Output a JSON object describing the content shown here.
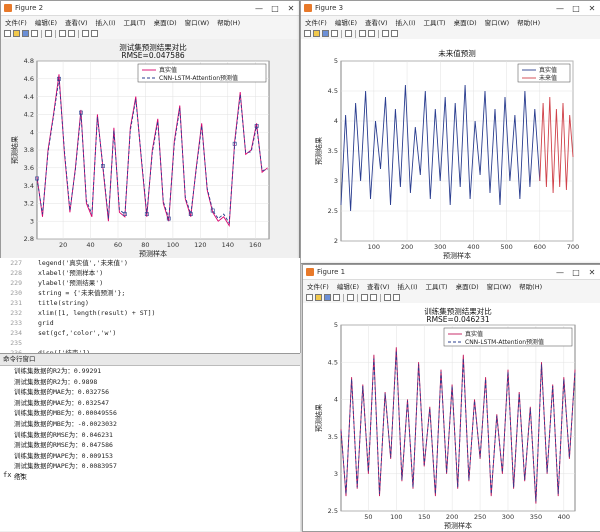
{
  "windows": {
    "fig2": {
      "title": "Figure 2",
      "menu": [
        "文件(F)",
        "编辑(E)",
        "查看(V)",
        "插入(I)",
        "工具(T)",
        "桌面(D)",
        "窗口(W)",
        "帮助(H)"
      ]
    },
    "fig3": {
      "title": "Figure 3",
      "menu": [
        "文件(F)",
        "编辑(E)",
        "查看(V)",
        "插入(I)",
        "工具(T)",
        "桌面(D)",
        "窗口(W)",
        "帮助(H)"
      ]
    },
    "fig1": {
      "title": "Figure 1",
      "menu": [
        "文件(F)",
        "编辑(E)",
        "查看(V)",
        "插入(I)",
        "工具(T)",
        "桌面(D)",
        "窗口(W)",
        "帮助(H)"
      ]
    },
    "window_buttons": {
      "min": "—",
      "max": "□",
      "close": "✕"
    }
  },
  "editor": {
    "lines": [
      {
        "num": "227",
        "code": "legend('真实值','未来值')"
      },
      {
        "num": "228",
        "code": "xlabel('预测样本')"
      },
      {
        "num": "229",
        "code": "ylabel('预测结果')"
      },
      {
        "num": "230",
        "code": "string = {'未来值预测'};"
      },
      {
        "num": "231",
        "code": "title(string)"
      },
      {
        "num": "232",
        "code": "xlim([1, length(result) + ST])"
      },
      {
        "num": "233",
        "code": "grid"
      },
      {
        "num": "234",
        "code": "set(gcf,'color','w')"
      },
      {
        "num": "235",
        "code": ""
      },
      {
        "num": "236",
        "code": "disp(['结束'])"
      }
    ]
  },
  "command_window": {
    "title": "命令行窗口",
    "lines": [
      "训练集数据的R2为：0.99291",
      "测试集数据的R2为：0.9898",
      "训练集数据的MAE为：0.032756",
      "测试集数据的MAE为：0.032547",
      "训练集数据的MBE为：0.00049556",
      "测试集数据的MBE为：-0.0023032",
      "训练集数据的RMSE为：0.046231",
      "测试集数据的RMSE为：0.047586",
      "训练集数据的MAPE为：0.009153",
      "测试集数据的MAPE为：0.0083957",
      "结束"
    ],
    "prompt": "fx >>"
  },
  "chart_data": [
    {
      "id": "fig2",
      "type": "line",
      "title": "测试集预测结果对比",
      "subtitle": "RMSE=0.047586",
      "xlabel": "预测样本",
      "ylabel": "预测结果",
      "xlim": [
        1,
        170
      ],
      "ylim": [
        2.8,
        4.8
      ],
      "xticks": [
        20,
        40,
        60,
        80,
        100,
        120,
        140,
        160
      ],
      "yticks": [
        2.8,
        3,
        3.2,
        3.4,
        3.6,
        3.8,
        4,
        4.2,
        4.4,
        4.6,
        4.8
      ],
      "legend": [
        "真实值",
        "CNN-LSTM-Attention预测值"
      ],
      "legend_position": "top-right",
      "colors": {
        "true": "#d9006b",
        "pred": "#2a3d8f"
      },
      "series": [
        {
          "name": "真实值",
          "x": [
            1,
            5,
            9,
            13,
            17,
            21,
            25,
            29,
            33,
            37,
            41,
            45,
            49,
            53,
            57,
            61,
            65,
            69,
            73,
            77,
            81,
            85,
            89,
            93,
            97,
            101,
            105,
            109,
            113,
            117,
            121,
            125,
            129,
            133,
            137,
            141,
            145,
            149,
            153,
            157,
            161,
            165,
            169
          ],
          "values": [
            3.5,
            3.05,
            3.8,
            4.2,
            4.65,
            3.75,
            3.1,
            3.6,
            4.25,
            3.2,
            3.05,
            4.2,
            3.6,
            3.0,
            4.05,
            3.1,
            3.05,
            4.05,
            4.4,
            3.7,
            3.05,
            3.8,
            4.15,
            3.2,
            3.0,
            3.9,
            4.3,
            3.25,
            3.05,
            3.6,
            4.1,
            3.35,
            3.1,
            3.0,
            3.05,
            2.95,
            3.9,
            4.45,
            3.75,
            3.8,
            4.1,
            3.55,
            3.6
          ]
        },
        {
          "name": "CNN-LSTM-Attention预测值",
          "x": [
            1,
            5,
            9,
            13,
            17,
            21,
            25,
            29,
            33,
            37,
            41,
            45,
            49,
            53,
            57,
            61,
            65,
            69,
            73,
            77,
            81,
            85,
            89,
            93,
            97,
            101,
            105,
            109,
            113,
            117,
            121,
            125,
            129,
            133,
            137,
            141,
            145,
            149,
            153,
            157,
            161,
            165,
            169
          ],
          "values": [
            3.48,
            3.08,
            3.77,
            4.18,
            4.6,
            3.78,
            3.12,
            3.58,
            4.22,
            3.23,
            3.08,
            4.17,
            3.62,
            3.03,
            4.02,
            3.13,
            3.08,
            4.02,
            4.37,
            3.72,
            3.08,
            3.77,
            4.12,
            3.22,
            3.03,
            3.87,
            4.27,
            3.27,
            3.08,
            3.58,
            4.07,
            3.37,
            3.12,
            3.03,
            3.08,
            2.98,
            3.87,
            4.42,
            3.77,
            3.78,
            4.07,
            3.57,
            3.58
          ]
        }
      ]
    },
    {
      "id": "fig3",
      "type": "line",
      "title": "未来值预测",
      "xlabel": "预测样本",
      "ylabel": "预测结果",
      "xlim": [
        1,
        700
      ],
      "ylim": [
        2,
        5
      ],
      "xticks": [
        100,
        200,
        300,
        400,
        500,
        600,
        700
      ],
      "yticks": [
        2,
        2.5,
        3,
        3.5,
        4,
        4.5,
        5
      ],
      "legend": [
        "真实值",
        "未来值"
      ],
      "legend_position": "top-right",
      "colors": {
        "true": "#2a3d8f",
        "future": "#d0424a"
      },
      "series": [
        {
          "name": "真实值",
          "x": [
            1,
            15,
            30,
            45,
            60,
            75,
            90,
            105,
            120,
            135,
            150,
            165,
            180,
            195,
            210,
            225,
            240,
            255,
            270,
            285,
            300,
            315,
            330,
            345,
            360,
            375,
            390,
            405,
            420,
            435,
            450,
            465,
            480,
            495,
            510,
            525,
            540,
            555,
            570,
            585,
            600
          ],
          "values": [
            2.6,
            4.1,
            2.5,
            4.3,
            3.0,
            4.5,
            2.7,
            4.0,
            3.2,
            4.4,
            2.6,
            4.2,
            2.9,
            4.6,
            2.8,
            3.9,
            3.1,
            4.5,
            2.7,
            4.2,
            3.0,
            4.4,
            2.6,
            4.3,
            2.9,
            4.6,
            2.7,
            4.0,
            3.1,
            4.5,
            2.8,
            4.2,
            2.6,
            4.4,
            3.0,
            4.1,
            2.7,
            4.5,
            2.9,
            4.2,
            3.0
          ]
        },
        {
          "name": "未来值",
          "x": [
            600,
            610,
            620,
            630,
            640,
            650,
            660,
            670,
            680,
            690,
            700
          ],
          "values": [
            3.0,
            4.3,
            2.9,
            4.4,
            2.8,
            4.2,
            2.9,
            4.3,
            2.85,
            4.1,
            3.4
          ]
        }
      ]
    },
    {
      "id": "fig1",
      "type": "line",
      "title": "训练集预测结果对比",
      "subtitle": "RMSE=0.046231",
      "xlabel": "预测样本",
      "ylabel": "预测结果",
      "xlim": [
        1,
        420
      ],
      "ylim": [
        2.5,
        5
      ],
      "xticks": [
        50,
        100,
        150,
        200,
        250,
        300,
        350,
        400
      ],
      "yticks": [
        2.5,
        3,
        3.5,
        4,
        4.5,
        5
      ],
      "legend": [
        "真实值",
        "CNN-LSTM-Attention预测值"
      ],
      "legend_position": "top-right",
      "colors": {
        "true": "#c2185b",
        "pred": "#2a3d8f"
      },
      "series": [
        {
          "name": "真实值",
          "x": [
            1,
            10,
            20,
            30,
            40,
            50,
            60,
            70,
            80,
            90,
            100,
            110,
            120,
            130,
            140,
            150,
            160,
            170,
            180,
            190,
            200,
            210,
            220,
            230,
            240,
            250,
            260,
            270,
            280,
            290,
            300,
            310,
            320,
            330,
            340,
            350,
            360,
            370,
            380,
            390,
            400,
            410,
            420
          ],
          "values": [
            3.6,
            2.7,
            4.3,
            2.8,
            4.2,
            3.0,
            4.6,
            2.7,
            4.1,
            3.2,
            4.7,
            2.9,
            4.0,
            2.8,
            4.5,
            3.1,
            3.9,
            2.7,
            4.4,
            3.0,
            4.2,
            2.8,
            4.6,
            2.9,
            4.0,
            3.2,
            4.3,
            2.7,
            3.8,
            3.0,
            4.4,
            2.8,
            4.1,
            2.9,
            3.9,
            2.6,
            4.5,
            3.0,
            4.2,
            2.7,
            4.3,
            3.2,
            4.4
          ]
        },
        {
          "name": "CNN-LSTM-Attention预测值",
          "x": [
            1,
            10,
            20,
            30,
            40,
            50,
            60,
            70,
            80,
            90,
            100,
            110,
            120,
            130,
            140,
            150,
            160,
            170,
            180,
            190,
            200,
            210,
            220,
            230,
            240,
            250,
            260,
            270,
            280,
            290,
            300,
            310,
            320,
            330,
            340,
            350,
            360,
            370,
            380,
            390,
            400,
            410,
            420
          ],
          "values": [
            3.58,
            2.73,
            4.27,
            2.82,
            4.18,
            3.03,
            4.55,
            2.73,
            4.08,
            3.22,
            4.65,
            2.92,
            3.98,
            2.82,
            4.47,
            3.12,
            3.88,
            2.73,
            4.37,
            3.02,
            4.18,
            2.82,
            4.55,
            2.92,
            3.98,
            3.22,
            4.27,
            2.73,
            3.78,
            3.02,
            4.37,
            2.82,
            4.08,
            2.92,
            3.88,
            2.63,
            4.47,
            3.02,
            4.18,
            2.73,
            4.27,
            3.22,
            4.37
          ]
        }
      ]
    }
  ]
}
